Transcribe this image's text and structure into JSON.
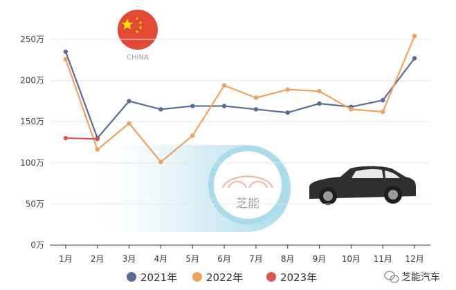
{
  "badge": {
    "label": "CHINA",
    "flag_color": "#de2910",
    "star_color": "#ffde00"
  },
  "watermark": {
    "text": "芝能"
  },
  "footer": {
    "brand": "芝能汽车"
  },
  "chart_data": {
    "type": "line",
    "categories": [
      "1月",
      "2月",
      "3月",
      "4月",
      "5月",
      "6月",
      "7月",
      "8月",
      "9月",
      "10月",
      "11月",
      "12月"
    ],
    "y_ticks": [
      "0万",
      "50万",
      "100万",
      "150万",
      "200万",
      "250万"
    ],
    "ylim": [
      0,
      2500000
    ],
    "grid": true,
    "legend_position": "bottom",
    "series": [
      {
        "name": "2021年",
        "color": "#5b6a96",
        "values": [
          2350000,
          1300000,
          1750000,
          1650000,
          1690000,
          1690000,
          1650000,
          1610000,
          1720000,
          1680000,
          1760000,
          2270000
        ]
      },
      {
        "name": "2022年",
        "color": "#f0a25c",
        "values": [
          2260000,
          1160000,
          1480000,
          1010000,
          1330000,
          1940000,
          1790000,
          1890000,
          1870000,
          1650000,
          1620000,
          2540000
        ]
      },
      {
        "name": "2023年",
        "color": "#d9554f",
        "values": [
          1300000,
          1290000,
          null,
          null,
          null,
          null,
          null,
          null,
          null,
          null,
          null,
          null
        ]
      }
    ]
  }
}
